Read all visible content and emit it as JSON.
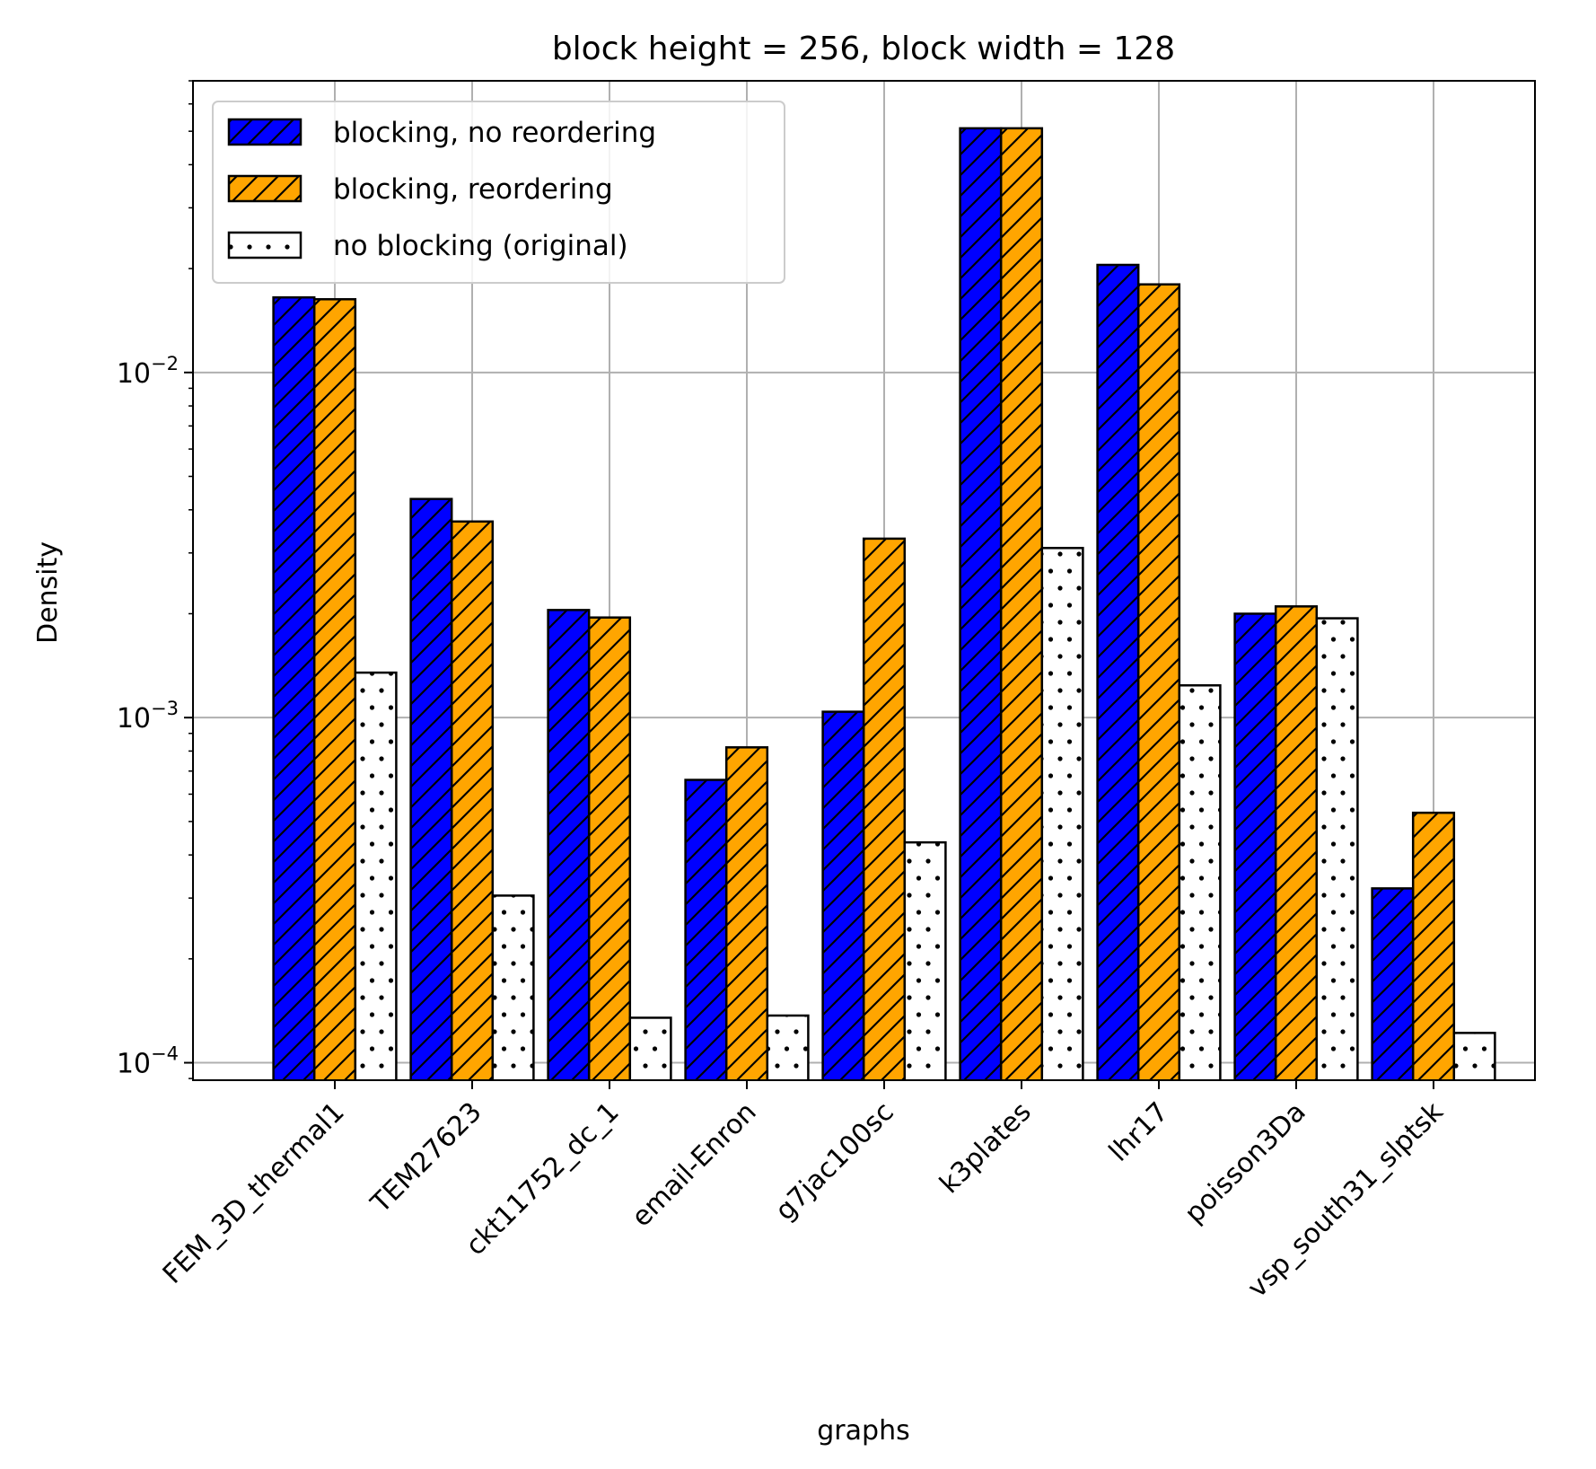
{
  "chart_data": {
    "type": "bar",
    "title": "block height = 256, block width = 128",
    "xlabel": "graphs",
    "ylabel": "Density",
    "yscale": "log",
    "ylim": [
      8.9e-05,
      0.07
    ],
    "yticks": [
      {
        "value": 0.0001,
        "base": "10",
        "exp": "−4"
      },
      {
        "value": 0.001,
        "base": "10",
        "exp": "−3"
      },
      {
        "value": 0.01,
        "base": "10",
        "exp": "−2"
      }
    ],
    "grid": true,
    "legend_position": "top-left",
    "categories": [
      "FEM_3D_thermal1",
      "TEM27623",
      "ckt11752_dc_1",
      "email-Enron",
      "g7jac100sc",
      "k3plates",
      "lhr17",
      "poisson3Da",
      "vsp_south31_slptsk"
    ],
    "series": [
      {
        "name": "blocking, no reordering",
        "color": "#0000ff",
        "pattern": "hatch",
        "values": [
          0.0165,
          0.0043,
          0.00205,
          0.00066,
          0.00104,
          0.051,
          0.0205,
          0.002,
          0.00032
        ]
      },
      {
        "name": "blocking, reordering",
        "color": "#ffa500",
        "pattern": "hatch",
        "values": [
          0.0163,
          0.0037,
          0.00195,
          0.00082,
          0.0033,
          0.051,
          0.018,
          0.0021,
          0.00053
        ]
      },
      {
        "name": "no blocking (original)",
        "color": "#ffffff",
        "pattern": "dots",
        "values": [
          0.00135,
          0.000305,
          0.000135,
          0.000137,
          0.000435,
          0.0031,
          0.00124,
          0.00194,
          0.000122
        ]
      }
    ]
  }
}
